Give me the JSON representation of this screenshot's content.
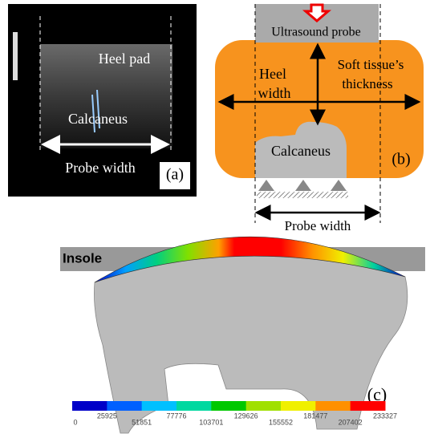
{
  "panel_a": {
    "heel_pad": "Heel pad",
    "calcaneus": "Calcaneus",
    "probe_width": "Probe width",
    "label": "(a)"
  },
  "panel_b": {
    "probe": "Ultrasound probe",
    "heel_width_1": "Heel",
    "heel_width_2": "width",
    "thickness_1": "Soft tissue’s",
    "thickness_2": "thickness",
    "calcaneus": "Calcaneus",
    "label": "(b)",
    "probe_width": "Probe width"
  },
  "panel_c": {
    "insole": "Insole",
    "label": "(c)",
    "colorbar": {
      "ticks": [
        0,
        25925,
        51851,
        77776,
        103701,
        129626,
        155552,
        181477,
        207402,
        233327
      ],
      "colors": [
        "#0000c8",
        "#0060ff",
        "#00c0ff",
        "#00d8a0",
        "#00c800",
        "#a0e000",
        "#f0f000",
        "#ff9000",
        "#ff0000"
      ]
    }
  }
}
